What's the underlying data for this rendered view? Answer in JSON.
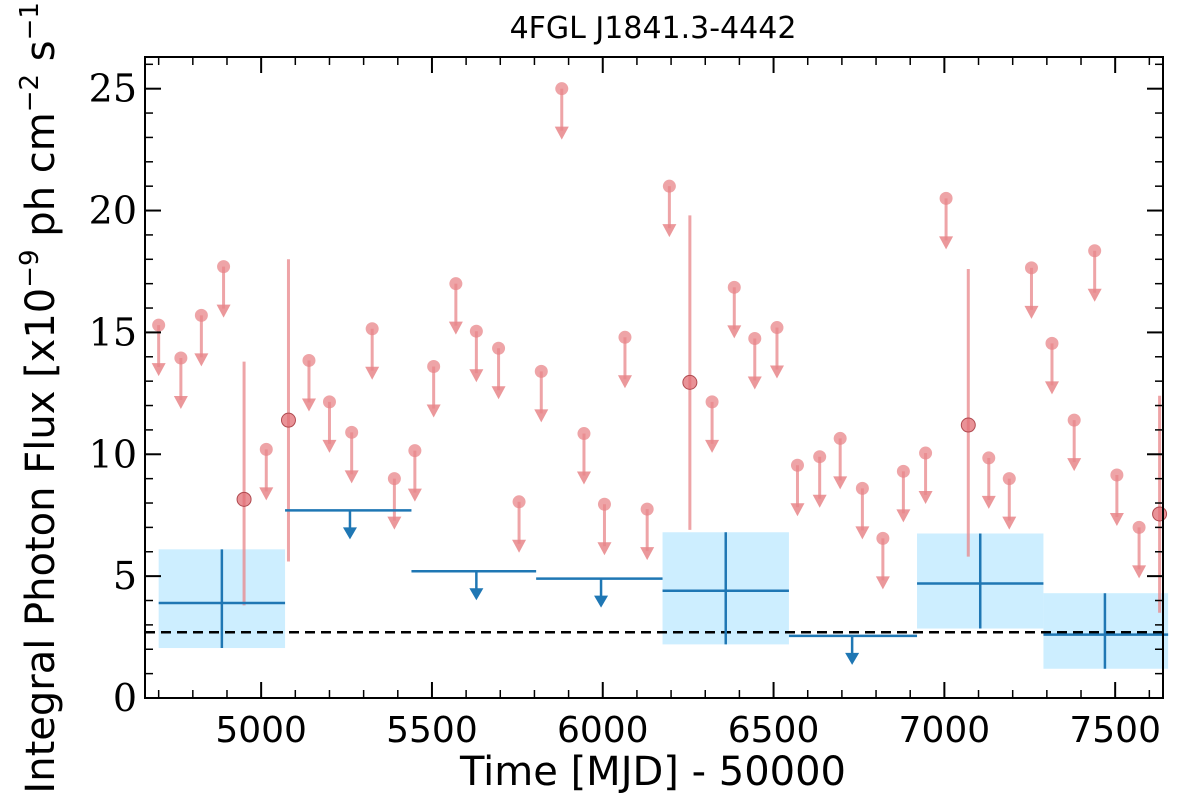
{
  "chart_data": {
    "type": "scatter",
    "title": "4FGL J1841.3-4442",
    "xlabel": "Time [MJD] - 50000",
    "ylabel": "Integral Photon Flux [x10^-9 ph cm^-2 s^-1]",
    "ylabel_parts": {
      "base": "Integral Photon Flux [x10",
      "exp1": "−9",
      "mid": " ph cm",
      "exp2": "−2",
      "mid2": " s",
      "exp3": "−1",
      "end": "]"
    },
    "xlim": [
      4660,
      7640
    ],
    "ylim": [
      0,
      26.3
    ],
    "x_ticks": [
      5000,
      5500,
      6000,
      6500,
      7000,
      7500
    ],
    "y_ticks": [
      0,
      5,
      10,
      15,
      20,
      25
    ],
    "x_tick_labels": [
      "5000",
      "5500",
      "6000",
      "6500",
      "7000",
      "7500"
    ],
    "y_tick_labels": [
      "0",
      "5",
      "10",
      "15",
      "20",
      "25"
    ],
    "colors": {
      "fine": "#e8868a",
      "coarse": "#1f77b4",
      "band": "#cdeeff",
      "baseline": "#000000"
    },
    "baseline_flux": 2.7,
    "fine_upper_limits": [
      {
        "x": 4700,
        "y": 15.3
      },
      {
        "x": 4765,
        "y": 13.95
      },
      {
        "x": 4825,
        "y": 15.7
      },
      {
        "x": 4890,
        "y": 17.7
      },
      {
        "x": 5015,
        "y": 10.2
      },
      {
        "x": 5140,
        "y": 13.85
      },
      {
        "x": 5200,
        "y": 12.15
      },
      {
        "x": 5265,
        "y": 10.9
      },
      {
        "x": 5325,
        "y": 15.15
      },
      {
        "x": 5390,
        "y": 9.0
      },
      {
        "x": 5450,
        "y": 10.15
      },
      {
        "x": 5505,
        "y": 13.6
      },
      {
        "x": 5570,
        "y": 17.0
      },
      {
        "x": 5630,
        "y": 15.05
      },
      {
        "x": 5695,
        "y": 14.35
      },
      {
        "x": 5755,
        "y": 8.05
      },
      {
        "x": 5820,
        "y": 13.4
      },
      {
        "x": 5880,
        "y": 25.0
      },
      {
        "x": 5945,
        "y": 10.85
      },
      {
        "x": 6005,
        "y": 7.95
      },
      {
        "x": 6065,
        "y": 14.8
      },
      {
        "x": 6130,
        "y": 7.75
      },
      {
        "x": 6195,
        "y": 21.0
      },
      {
        "x": 6320,
        "y": 12.15
      },
      {
        "x": 6385,
        "y": 16.85
      },
      {
        "x": 6445,
        "y": 14.75
      },
      {
        "x": 6510,
        "y": 15.2
      },
      {
        "x": 6570,
        "y": 9.55
      },
      {
        "x": 6635,
        "y": 9.9
      },
      {
        "x": 6695,
        "y": 10.65
      },
      {
        "x": 6760,
        "y": 8.6
      },
      {
        "x": 6820,
        "y": 6.55
      },
      {
        "x": 6880,
        "y": 9.3
      },
      {
        "x": 6945,
        "y": 10.05
      },
      {
        "x": 7005,
        "y": 20.5
      },
      {
        "x": 7130,
        "y": 9.85
      },
      {
        "x": 7190,
        "y": 9.0
      },
      {
        "x": 7255,
        "y": 17.65
      },
      {
        "x": 7315,
        "y": 14.55
      },
      {
        "x": 7380,
        "y": 11.4
      },
      {
        "x": 7440,
        "y": 18.35
      },
      {
        "x": 7505,
        "y": 9.15
      },
      {
        "x": 7570,
        "y": 7.0
      }
    ],
    "fine_detections": [
      {
        "x": 4950,
        "y": 8.15,
        "ylo": 3.8,
        "yhi": 13.8
      },
      {
        "x": 5080,
        "y": 11.4,
        "ylo": 5.6,
        "yhi": 18.0
      },
      {
        "x": 6255,
        "y": 12.95,
        "ylo": 6.9,
        "yhi": 19.8
      },
      {
        "x": 7070,
        "y": 11.2,
        "ylo": 5.8,
        "yhi": 17.6
      },
      {
        "x": 7630,
        "y": 7.55,
        "ylo": 3.5,
        "yhi": 12.4
      }
    ],
    "coarse_detections": [
      {
        "x": 4885,
        "xlo": 4700,
        "xhi": 5070,
        "y": 3.9,
        "ylo": 2.05,
        "yhi": 6.1
      },
      {
        "x": 6360,
        "xlo": 6175,
        "xhi": 6545,
        "y": 4.4,
        "ylo": 2.2,
        "yhi": 6.8
      },
      {
        "x": 7105,
        "xlo": 6920,
        "xhi": 7290,
        "y": 4.7,
        "ylo": 2.85,
        "yhi": 6.75
      },
      {
        "x": 7470,
        "xlo": 7290,
        "xhi": 7655,
        "y": 2.6,
        "ylo": 1.2,
        "yhi": 4.3
      }
    ],
    "coarse_upper_limits": [
      {
        "x": 5260,
        "xlo": 5070,
        "xhi": 5440,
        "y": 7.7
      },
      {
        "x": 5630,
        "xlo": 5440,
        "xhi": 5805,
        "y": 5.2
      },
      {
        "x": 5995,
        "xlo": 5805,
        "xhi": 6175,
        "y": 4.9
      },
      {
        "x": 6730,
        "xlo": 6545,
        "xhi": 6920,
        "y": 2.55
      }
    ]
  }
}
